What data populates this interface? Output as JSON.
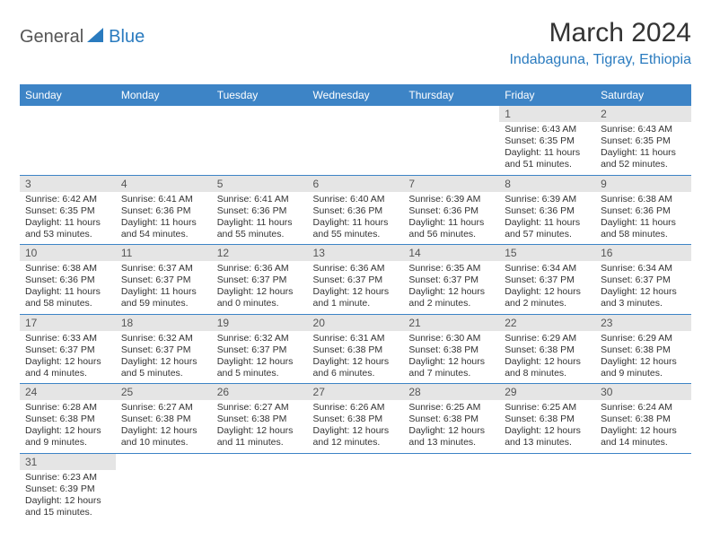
{
  "logo": {
    "text1": "General",
    "text2": "Blue"
  },
  "title": "March 2024",
  "location": "Indabaguna, Tigray, Ethiopia",
  "weekday_labels": [
    "Sunday",
    "Monday",
    "Tuesday",
    "Wednesday",
    "Thursday",
    "Friday",
    "Saturday"
  ],
  "colors": {
    "header_bg": "#3d84c6",
    "header_text": "#ffffff",
    "daynum_bg": "#e5e5e5",
    "row_border": "#3d84c6",
    "accent": "#2a7bbf",
    "body_text": "#333333"
  },
  "days": {
    "1": {
      "sunrise": "6:43 AM",
      "sunset": "6:35 PM",
      "daylight": "11 hours and 51 minutes."
    },
    "2": {
      "sunrise": "6:43 AM",
      "sunset": "6:35 PM",
      "daylight": "11 hours and 52 minutes."
    },
    "3": {
      "sunrise": "6:42 AM",
      "sunset": "6:35 PM",
      "daylight": "11 hours and 53 minutes."
    },
    "4": {
      "sunrise": "6:41 AM",
      "sunset": "6:36 PM",
      "daylight": "11 hours and 54 minutes."
    },
    "5": {
      "sunrise": "6:41 AM",
      "sunset": "6:36 PM",
      "daylight": "11 hours and 55 minutes."
    },
    "6": {
      "sunrise": "6:40 AM",
      "sunset": "6:36 PM",
      "daylight": "11 hours and 55 minutes."
    },
    "7": {
      "sunrise": "6:39 AM",
      "sunset": "6:36 PM",
      "daylight": "11 hours and 56 minutes."
    },
    "8": {
      "sunrise": "6:39 AM",
      "sunset": "6:36 PM",
      "daylight": "11 hours and 57 minutes."
    },
    "9": {
      "sunrise": "6:38 AM",
      "sunset": "6:36 PM",
      "daylight": "11 hours and 58 minutes."
    },
    "10": {
      "sunrise": "6:38 AM",
      "sunset": "6:36 PM",
      "daylight": "11 hours and 58 minutes."
    },
    "11": {
      "sunrise": "6:37 AM",
      "sunset": "6:37 PM",
      "daylight": "11 hours and 59 minutes."
    },
    "12": {
      "sunrise": "6:36 AM",
      "sunset": "6:37 PM",
      "daylight": "12 hours and 0 minutes."
    },
    "13": {
      "sunrise": "6:36 AM",
      "sunset": "6:37 PM",
      "daylight": "12 hours and 1 minute."
    },
    "14": {
      "sunrise": "6:35 AM",
      "sunset": "6:37 PM",
      "daylight": "12 hours and 2 minutes."
    },
    "15": {
      "sunrise": "6:34 AM",
      "sunset": "6:37 PM",
      "daylight": "12 hours and 2 minutes."
    },
    "16": {
      "sunrise": "6:34 AM",
      "sunset": "6:37 PM",
      "daylight": "12 hours and 3 minutes."
    },
    "17": {
      "sunrise": "6:33 AM",
      "sunset": "6:37 PM",
      "daylight": "12 hours and 4 minutes."
    },
    "18": {
      "sunrise": "6:32 AM",
      "sunset": "6:37 PM",
      "daylight": "12 hours and 5 minutes."
    },
    "19": {
      "sunrise": "6:32 AM",
      "sunset": "6:37 PM",
      "daylight": "12 hours and 5 minutes."
    },
    "20": {
      "sunrise": "6:31 AM",
      "sunset": "6:38 PM",
      "daylight": "12 hours and 6 minutes."
    },
    "21": {
      "sunrise": "6:30 AM",
      "sunset": "6:38 PM",
      "daylight": "12 hours and 7 minutes."
    },
    "22": {
      "sunrise": "6:29 AM",
      "sunset": "6:38 PM",
      "daylight": "12 hours and 8 minutes."
    },
    "23": {
      "sunrise": "6:29 AM",
      "sunset": "6:38 PM",
      "daylight": "12 hours and 9 minutes."
    },
    "24": {
      "sunrise": "6:28 AM",
      "sunset": "6:38 PM",
      "daylight": "12 hours and 9 minutes."
    },
    "25": {
      "sunrise": "6:27 AM",
      "sunset": "6:38 PM",
      "daylight": "12 hours and 10 minutes."
    },
    "26": {
      "sunrise": "6:27 AM",
      "sunset": "6:38 PM",
      "daylight": "12 hours and 11 minutes."
    },
    "27": {
      "sunrise": "6:26 AM",
      "sunset": "6:38 PM",
      "daylight": "12 hours and 12 minutes."
    },
    "28": {
      "sunrise": "6:25 AM",
      "sunset": "6:38 PM",
      "daylight": "12 hours and 13 minutes."
    },
    "29": {
      "sunrise": "6:25 AM",
      "sunset": "6:38 PM",
      "daylight": "12 hours and 13 minutes."
    },
    "30": {
      "sunrise": "6:24 AM",
      "sunset": "6:38 PM",
      "daylight": "12 hours and 14 minutes."
    },
    "31": {
      "sunrise": "6:23 AM",
      "sunset": "6:39 PM",
      "daylight": "12 hours and 15 minutes."
    }
  },
  "labels": {
    "sunrise_prefix": "Sunrise: ",
    "sunset_prefix": "Sunset: ",
    "daylight_prefix": "Daylight: "
  },
  "grid": [
    [
      null,
      null,
      null,
      null,
      null,
      "1",
      "2"
    ],
    [
      "3",
      "4",
      "5",
      "6",
      "7",
      "8",
      "9"
    ],
    [
      "10",
      "11",
      "12",
      "13",
      "14",
      "15",
      "16"
    ],
    [
      "17",
      "18",
      "19",
      "20",
      "21",
      "22",
      "23"
    ],
    [
      "24",
      "25",
      "26",
      "27",
      "28",
      "29",
      "30"
    ],
    [
      "31",
      null,
      null,
      null,
      null,
      null,
      null
    ]
  ]
}
